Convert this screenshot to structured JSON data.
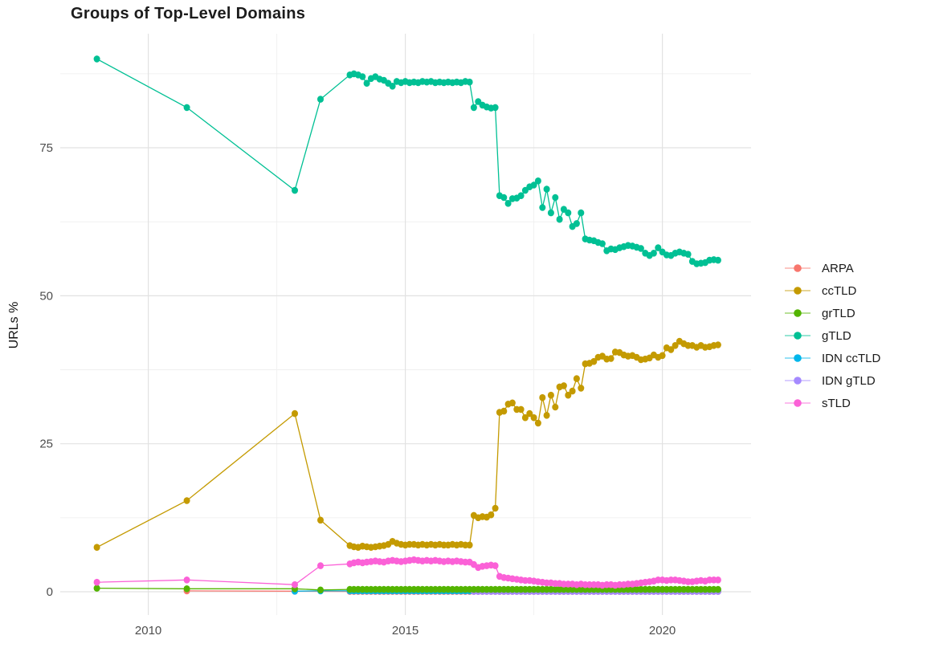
{
  "chart_data": {
    "type": "line",
    "title": "Groups of Top-Level Domains",
    "xlabel": "",
    "ylabel": "URLs %",
    "x_ticks": [
      2010,
      2015,
      2020
    ],
    "x_minor": [
      2012.5,
      2017.5
    ],
    "y_ticks": [
      0,
      25,
      50,
      75
    ],
    "y_minor": [
      12.5,
      37.5,
      62.5,
      87.5
    ],
    "xlim": [
      2008.3,
      2021.73
    ],
    "ylim": [
      -3.9,
      94.3
    ],
    "grid_major_color": "#e2e2e2",
    "grid_minor_color": "#f0f0f0",
    "axis_text_color": "#4d4d4d",
    "legend_position": "right",
    "monthly_x": [
      2013.92,
      2014.0,
      2014.083,
      2014.167,
      2014.25,
      2014.333,
      2014.417,
      2014.5,
      2014.583,
      2014.667,
      2014.75,
      2014.833,
      2014.917,
      2015.0,
      2015.083,
      2015.167,
      2015.25,
      2015.333,
      2015.417,
      2015.5,
      2015.583,
      2015.667,
      2015.75,
      2015.833,
      2015.917,
      2016.0,
      2016.083,
      2016.167,
      2016.25,
      2016.333,
      2016.417,
      2016.5,
      2016.583,
      2016.667,
      2016.75,
      2016.833,
      2016.917,
      2017.0,
      2017.083,
      2017.167,
      2017.25,
      2017.333,
      2017.417,
      2017.5,
      2017.583,
      2017.667,
      2017.75,
      2017.833,
      2017.917,
      2018.0,
      2018.083,
      2018.167,
      2018.25,
      2018.333,
      2018.417,
      2018.5,
      2018.583,
      2018.667,
      2018.75,
      2018.833,
      2018.917,
      2019.0,
      2019.083,
      2019.167,
      2019.25,
      2019.333,
      2019.417,
      2019.5,
      2019.583,
      2019.667,
      2019.75,
      2019.833,
      2019.917,
      2020.0,
      2020.083,
      2020.167,
      2020.25,
      2020.333,
      2020.417,
      2020.5,
      2020.583,
      2020.667,
      2020.75,
      2020.833,
      2020.917,
      2021.0,
      2021.083
    ],
    "series": [
      {
        "name": "ARPA",
        "color": "#F8766D",
        "points": [
          [
            2010.75,
            0.15
          ],
          [
            2012.85,
            0.1
          ]
        ],
        "monthly_y": {
          "value": 0.05,
          "from": 2013.92
        }
      },
      {
        "name": "ccTLD",
        "color": "#C49A00",
        "points": [
          [
            2009.0,
            7.5
          ],
          [
            2010.75,
            15.4
          ],
          [
            2012.85,
            30.1
          ],
          [
            2013.35,
            12.1
          ]
        ],
        "monthly_y": [
          7.8,
          7.6,
          7.5,
          7.7,
          7.6,
          7.5,
          7.6,
          7.7,
          7.8,
          8.0,
          8.5,
          8.2,
          8.0,
          7.9,
          8.0,
          8.0,
          7.9,
          8.0,
          7.9,
          8.0,
          7.9,
          8.0,
          7.9,
          7.9,
          8.0,
          7.9,
          8.0,
          7.9,
          7.9,
          12.9,
          12.5,
          12.7,
          12.6,
          13.0,
          14.1,
          30.3,
          30.5,
          31.7,
          31.9,
          30.8,
          30.8,
          29.4,
          30.1,
          29.4,
          28.5,
          32.8,
          29.8,
          33.2,
          31.2,
          34.6,
          34.8,
          33.2,
          33.9,
          36.0,
          34.4,
          38.5,
          38.6,
          38.9,
          39.6,
          39.8,
          39.3,
          39.4,
          40.5,
          40.4,
          40.0,
          39.8,
          39.9,
          39.6,
          39.2,
          39.3,
          39.5,
          40.0,
          39.6,
          39.9,
          41.2,
          40.9,
          41.6,
          42.3,
          41.9,
          41.6,
          41.6,
          41.3,
          41.6,
          41.3,
          41.4,
          41.6,
          41.7
        ]
      },
      {
        "name": "grTLD",
        "color": "#53B400",
        "points": [
          [
            2009.0,
            0.6
          ],
          [
            2010.75,
            0.5
          ],
          [
            2012.85,
            0.5
          ],
          [
            2013.35,
            0.3
          ]
        ],
        "monthly_y": {
          "value": 0.4,
          "from": 2013.92
        }
      },
      {
        "name": "gTLD",
        "color": "#00C094",
        "points": [
          [
            2009.0,
            90.0
          ],
          [
            2010.75,
            81.8
          ],
          [
            2012.85,
            67.8
          ],
          [
            2013.35,
            83.2
          ]
        ],
        "monthly_y": [
          87.3,
          87.5,
          87.3,
          87.0,
          85.9,
          86.7,
          87.0,
          86.6,
          86.4,
          85.9,
          85.4,
          86.2,
          86.0,
          86.2,
          86.0,
          86.1,
          86.0,
          86.2,
          86.1,
          86.2,
          86.0,
          86.1,
          86.0,
          86.1,
          86.0,
          86.1,
          86.0,
          86.2,
          86.1,
          81.8,
          82.8,
          82.2,
          81.9,
          81.7,
          81.8,
          66.9,
          66.6,
          65.6,
          66.4,
          66.5,
          66.9,
          67.8,
          68.4,
          68.7,
          69.4,
          64.9,
          68.0,
          64.0,
          66.6,
          62.9,
          64.6,
          64.0,
          61.7,
          62.2,
          64.0,
          59.6,
          59.4,
          59.3,
          59.0,
          58.8,
          57.6,
          57.9,
          57.8,
          58.1,
          58.3,
          58.5,
          58.4,
          58.2,
          58.0,
          57.2,
          56.8,
          57.2,
          58.1,
          57.4,
          56.9,
          56.8,
          57.2,
          57.4,
          57.2,
          57.0,
          55.8,
          55.4,
          55.5,
          55.6,
          56.0,
          56.1,
          56.0
        ]
      },
      {
        "name": "IDN ccTLD",
        "color": "#00B6EB",
        "points": [
          [
            2012.85,
            0.1
          ],
          [
            2013.35,
            0.15
          ]
        ],
        "monthly_y": {
          "value": 0.15,
          "from": 2013.92
        }
      },
      {
        "name": "IDN gTLD",
        "color": "#A58AFF",
        "points": [],
        "monthly_y": {
          "value": 0.05,
          "from": 2016.333
        }
      },
      {
        "name": "sTLD",
        "color": "#FB61D7",
        "points": [
          [
            2009.0,
            1.6
          ],
          [
            2010.75,
            2.0
          ],
          [
            2012.85,
            1.2
          ],
          [
            2013.35,
            4.4
          ]
        ],
        "monthly_y": [
          4.7,
          4.9,
          5.0,
          4.9,
          5.0,
          5.1,
          5.2,
          5.1,
          5.0,
          5.2,
          5.3,
          5.2,
          5.1,
          5.2,
          5.3,
          5.4,
          5.3,
          5.2,
          5.3,
          5.2,
          5.3,
          5.2,
          5.1,
          5.2,
          5.1,
          5.2,
          5.1,
          5.0,
          5.0,
          4.6,
          4.1,
          4.3,
          4.4,
          4.5,
          4.4,
          2.6,
          2.4,
          2.3,
          2.2,
          2.1,
          2.0,
          1.9,
          1.9,
          1.8,
          1.7,
          1.6,
          1.5,
          1.5,
          1.4,
          1.4,
          1.3,
          1.3,
          1.3,
          1.2,
          1.3,
          1.2,
          1.2,
          1.2,
          1.2,
          1.1,
          1.2,
          1.2,
          1.1,
          1.2,
          1.2,
          1.3,
          1.3,
          1.4,
          1.5,
          1.6,
          1.7,
          1.8,
          2.0,
          2.0,
          1.9,
          2.0,
          2.0,
          1.9,
          1.8,
          1.7,
          1.7,
          1.8,
          1.9,
          1.8,
          2.0,
          2.0,
          2.0
        ]
      }
    ]
  }
}
